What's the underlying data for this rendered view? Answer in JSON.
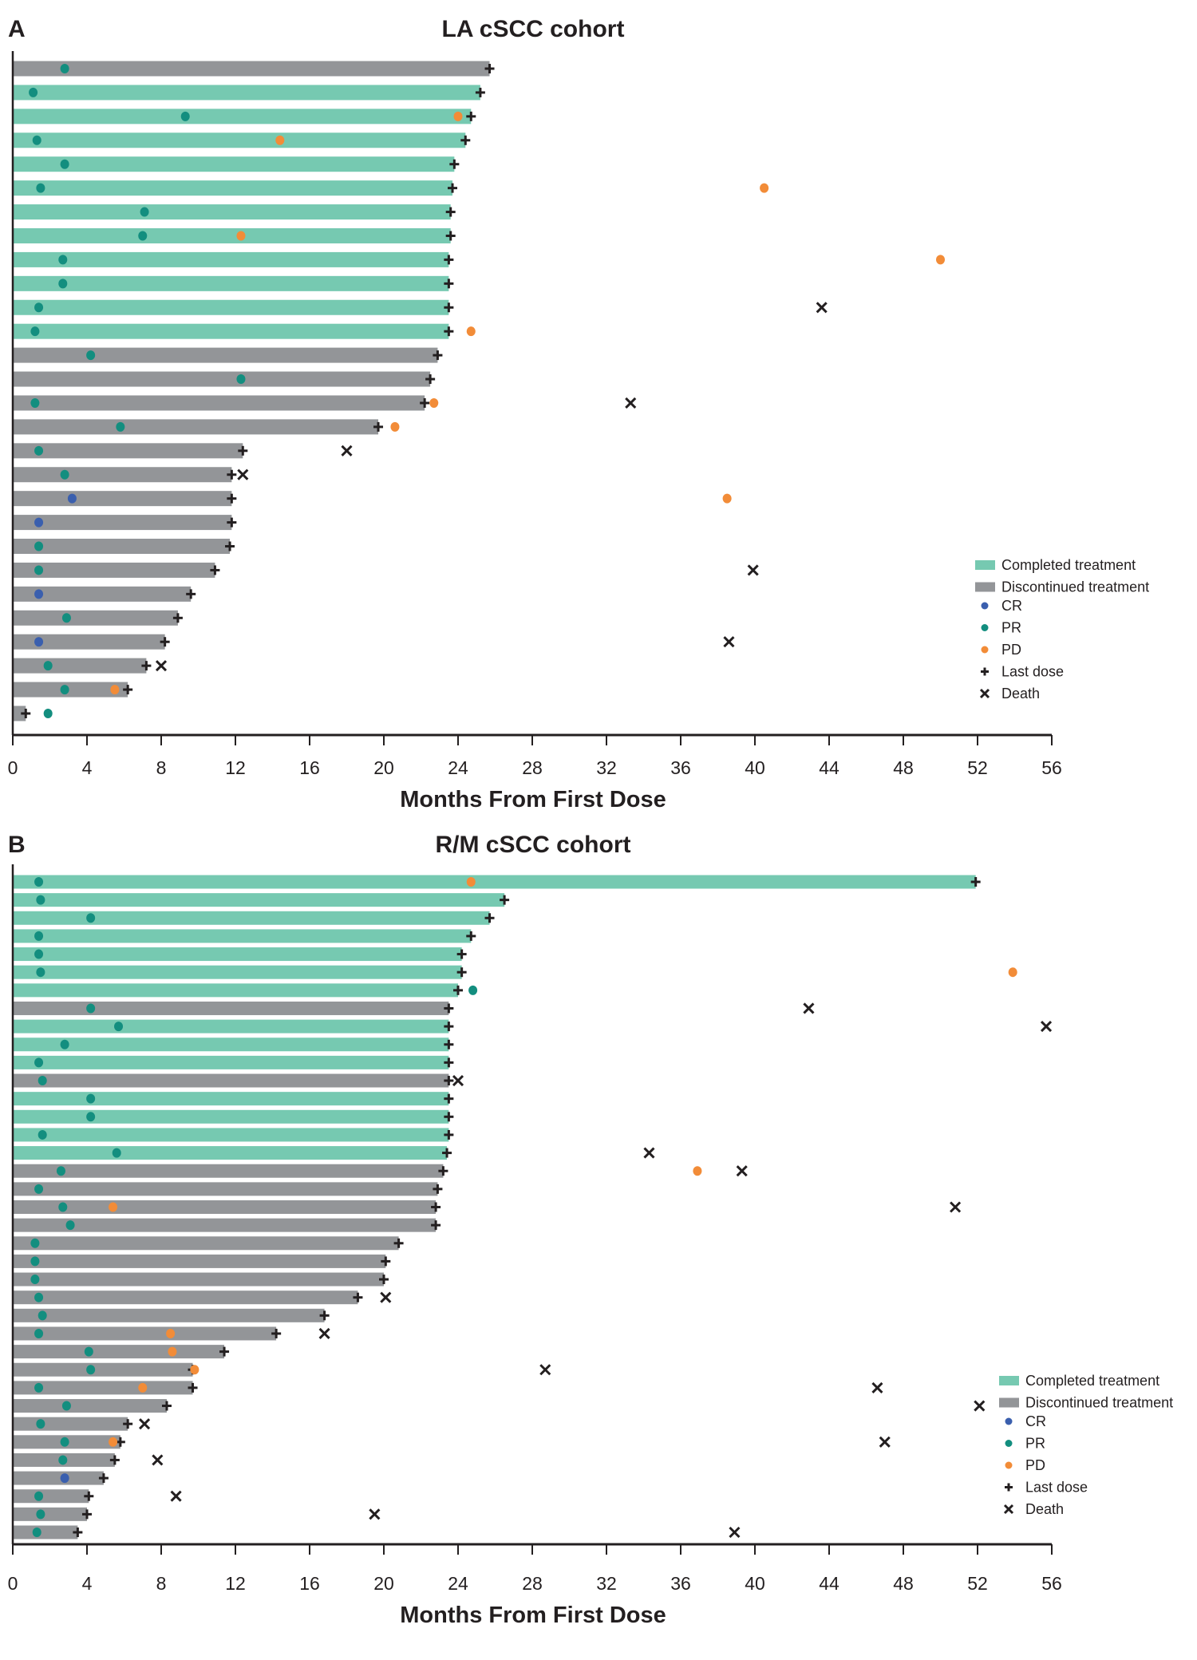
{
  "colors": {
    "completed": "#76c9b1",
    "discontinued": "#939598",
    "CR": "#3a5fae",
    "PR": "#138e7f",
    "PD": "#f28c38",
    "marker": "#231f20"
  },
  "chart_data": [
    {
      "type": "bar",
      "subtype": "swimmer-plot",
      "panel": "A",
      "title": "LA  cSCC cohort",
      "xlabel": "Months From First Dose",
      "ylabel": "",
      "xlim": [
        0,
        56
      ],
      "xticks": [
        "0",
        "4",
        "8",
        "12",
        "16",
        "20",
        "24",
        "28",
        "32",
        "36",
        "40",
        "44",
        "48",
        "52",
        "56"
      ],
      "grid": false,
      "legend_position": "bottom-right",
      "legend": [
        {
          "key": "completed",
          "label": "Completed treatment",
          "shape": "bar"
        },
        {
          "key": "discontinued",
          "label": "Discontinued treatment",
          "shape": "bar"
        },
        {
          "key": "CR",
          "label": "CR",
          "shape": "dot"
        },
        {
          "key": "PR",
          "label": "PR",
          "shape": "dot"
        },
        {
          "key": "PD",
          "label": "PD",
          "shape": "dot"
        },
        {
          "key": "last_dose",
          "label": "Last dose",
          "shape": "plus"
        },
        {
          "key": "death",
          "label": "Death",
          "shape": "x"
        }
      ],
      "patients": [
        {
          "status": "discontinued",
          "duration": 25.7,
          "CR": [],
          "PR": [
            2.8
          ],
          "PD": [],
          "death": null
        },
        {
          "status": "completed",
          "duration": 25.2,
          "CR": [],
          "PR": [
            1.1
          ],
          "PD": [],
          "death": null
        },
        {
          "status": "completed",
          "duration": 24.7,
          "CR": [],
          "PR": [
            9.3
          ],
          "PD": [
            24.0
          ],
          "death": null
        },
        {
          "status": "completed",
          "duration": 24.4,
          "CR": [],
          "PR": [
            1.3
          ],
          "PD": [
            14.4
          ],
          "death": null
        },
        {
          "status": "completed",
          "duration": 23.8,
          "CR": [],
          "PR": [
            2.8
          ],
          "PD": [],
          "death": null
        },
        {
          "status": "completed",
          "duration": 23.7,
          "CR": [],
          "PR": [
            1.5
          ],
          "PD": [
            40.5
          ],
          "death": null
        },
        {
          "status": "completed",
          "duration": 23.6,
          "CR": [],
          "PR": [
            7.1
          ],
          "PD": [],
          "death": null
        },
        {
          "status": "completed",
          "duration": 23.6,
          "CR": [],
          "PR": [
            7.0
          ],
          "PD": [
            12.3
          ],
          "death": null
        },
        {
          "status": "completed",
          "duration": 23.5,
          "CR": [],
          "PR": [
            2.7
          ],
          "PD": [
            50.0
          ],
          "death": null
        },
        {
          "status": "completed",
          "duration": 23.5,
          "CR": [],
          "PR": [
            2.7
          ],
          "PD": [],
          "death": null
        },
        {
          "status": "completed",
          "duration": 23.5,
          "CR": [],
          "PR": [
            1.4
          ],
          "PD": [],
          "death": 43.6
        },
        {
          "status": "completed",
          "duration": 23.5,
          "CR": [],
          "PR": [
            1.2
          ],
          "PD": [
            24.7
          ],
          "death": null
        },
        {
          "status": "discontinued",
          "duration": 22.9,
          "CR": [],
          "PR": [
            4.2
          ],
          "PD": [],
          "death": null
        },
        {
          "status": "discontinued",
          "duration": 22.5,
          "CR": [],
          "PR": [
            12.3
          ],
          "PD": [],
          "death": null
        },
        {
          "status": "discontinued",
          "duration": 22.2,
          "CR": [],
          "PR": [
            1.2
          ],
          "PD": [
            22.7
          ],
          "death": 33.3
        },
        {
          "status": "discontinued",
          "duration": 19.7,
          "CR": [],
          "PR": [
            5.8
          ],
          "PD": [
            20.6
          ],
          "death": null
        },
        {
          "status": "discontinued",
          "duration": 12.4,
          "CR": [],
          "PR": [
            1.4
          ],
          "PD": [],
          "death": 18.0
        },
        {
          "status": "discontinued",
          "duration": 11.8,
          "CR": [],
          "PR": [
            2.8
          ],
          "PD": [],
          "death": 12.4
        },
        {
          "status": "discontinued",
          "duration": 11.8,
          "CR": [
            3.2
          ],
          "PR": [],
          "PD": [
            38.5
          ],
          "death": null
        },
        {
          "status": "discontinued",
          "duration": 11.8,
          "CR": [
            1.4
          ],
          "PR": [],
          "PD": [],
          "death": null
        },
        {
          "status": "discontinued",
          "duration": 11.7,
          "CR": [],
          "PR": [
            1.4
          ],
          "PD": [],
          "death": null
        },
        {
          "status": "discontinued",
          "duration": 10.9,
          "CR": [],
          "PR": [
            1.4
          ],
          "PD": [],
          "death": 39.9
        },
        {
          "status": "discontinued",
          "duration": 9.6,
          "CR": [
            1.4
          ],
          "PR": [],
          "PD": [],
          "death": null
        },
        {
          "status": "discontinued",
          "duration": 8.9,
          "CR": [],
          "PR": [
            2.9
          ],
          "PD": [],
          "death": null
        },
        {
          "status": "discontinued",
          "duration": 8.2,
          "CR": [
            1.4
          ],
          "PR": [],
          "PD": [],
          "death": 38.6
        },
        {
          "status": "discontinued",
          "duration": 7.2,
          "CR": [],
          "PR": [
            1.9
          ],
          "PD": [],
          "death": 8.0
        },
        {
          "status": "discontinued",
          "duration": 6.2,
          "CR": [],
          "PR": [
            2.8
          ],
          "PD": [
            5.5
          ],
          "death": null
        },
        {
          "status": "discontinued",
          "duration": 0.7,
          "CR": [],
          "PR": [
            1.9
          ],
          "PD": [],
          "death": null
        }
      ]
    },
    {
      "type": "bar",
      "subtype": "swimmer-plot",
      "panel": "B",
      "title": "R/M  cSCC cohort",
      "xlabel": "Months From First Dose",
      "ylabel": "",
      "xlim": [
        0,
        56
      ],
      "xticks": [
        "0",
        "4",
        "8",
        "12",
        "16",
        "20",
        "24",
        "28",
        "32",
        "36",
        "40",
        "44",
        "48",
        "52",
        "56"
      ],
      "grid": false,
      "legend_position": "bottom-right",
      "legend": [
        {
          "key": "completed",
          "label": "Completed treatment",
          "shape": "bar"
        },
        {
          "key": "discontinued",
          "label": "Discontinued treatment",
          "shape": "bar"
        },
        {
          "key": "CR",
          "label": "CR",
          "shape": "dot"
        },
        {
          "key": "PR",
          "label": "PR",
          "shape": "dot"
        },
        {
          "key": "PD",
          "label": "PD",
          "shape": "dot"
        },
        {
          "key": "last_dose",
          "label": "Last dose",
          "shape": "plus"
        },
        {
          "key": "death",
          "label": "Death",
          "shape": "x"
        }
      ],
      "patients": [
        {
          "status": "completed",
          "duration": 51.9,
          "CR": [],
          "PR": [
            1.4
          ],
          "PD": [
            24.7
          ],
          "death": null
        },
        {
          "status": "completed",
          "duration": 26.5,
          "CR": [],
          "PR": [
            1.5
          ],
          "PD": [],
          "death": null
        },
        {
          "status": "completed",
          "duration": 25.7,
          "CR": [],
          "PR": [
            4.2
          ],
          "PD": [],
          "death": null
        },
        {
          "status": "completed",
          "duration": 24.7,
          "CR": [],
          "PR": [
            1.4
          ],
          "PD": [],
          "death": null
        },
        {
          "status": "completed",
          "duration": 24.2,
          "CR": [],
          "PR": [
            1.4
          ],
          "PD": [],
          "death": null
        },
        {
          "status": "completed",
          "duration": 24.2,
          "CR": [],
          "PR": [
            1.5
          ],
          "PD": [
            53.9
          ],
          "death": null
        },
        {
          "status": "completed",
          "duration": 24.0,
          "CR": [],
          "PR": [
            24.8
          ],
          "PD": [],
          "death": null
        },
        {
          "status": "discontinued",
          "duration": 23.5,
          "CR": [],
          "PR": [
            4.2
          ],
          "PD": [],
          "death": 42.9
        },
        {
          "status": "completed",
          "duration": 23.5,
          "CR": [],
          "PR": [
            5.7
          ],
          "PD": [],
          "death": 55.7
        },
        {
          "status": "completed",
          "duration": 23.5,
          "CR": [],
          "PR": [
            2.8
          ],
          "PD": [],
          "death": null
        },
        {
          "status": "completed",
          "duration": 23.5,
          "CR": [],
          "PR": [
            1.4
          ],
          "PD": [],
          "death": null
        },
        {
          "status": "discontinued",
          "duration": 23.5,
          "CR": [],
          "PR": [
            1.6
          ],
          "PD": [],
          "death": 24.0
        },
        {
          "status": "completed",
          "duration": 23.5,
          "CR": [],
          "PR": [
            4.2
          ],
          "PD": [],
          "death": null
        },
        {
          "status": "completed",
          "duration": 23.5,
          "CR": [],
          "PR": [
            4.2
          ],
          "PD": [],
          "death": null
        },
        {
          "status": "completed",
          "duration": 23.5,
          "CR": [],
          "PR": [
            1.6
          ],
          "PD": [],
          "death": null
        },
        {
          "status": "completed",
          "duration": 23.4,
          "CR": [],
          "PR": [
            5.6
          ],
          "PD": [],
          "death": 34.3
        },
        {
          "status": "discontinued",
          "duration": 23.2,
          "CR": [],
          "PR": [
            2.6
          ],
          "PD": [
            36.9
          ],
          "death": 39.3
        },
        {
          "status": "discontinued",
          "duration": 22.9,
          "CR": [],
          "PR": [
            1.4
          ],
          "PD": [],
          "death": null
        },
        {
          "status": "discontinued",
          "duration": 22.8,
          "CR": [],
          "PR": [
            2.7
          ],
          "PD": [
            5.4
          ],
          "death": 50.8
        },
        {
          "status": "discontinued",
          "duration": 22.8,
          "CR": [],
          "PR": [
            3.1
          ],
          "PD": [],
          "death": null
        },
        {
          "status": "discontinued",
          "duration": 20.8,
          "CR": [],
          "PR": [
            1.2
          ],
          "PD": [],
          "death": null
        },
        {
          "status": "discontinued",
          "duration": 20.1,
          "CR": [],
          "PR": [
            1.2
          ],
          "PD": [],
          "death": null
        },
        {
          "status": "discontinued",
          "duration": 20.0,
          "CR": [],
          "PR": [
            1.2
          ],
          "PD": [],
          "death": null
        },
        {
          "status": "discontinued",
          "duration": 18.6,
          "CR": [],
          "PR": [
            1.4
          ],
          "PD": [],
          "death": 20.1
        },
        {
          "status": "discontinued",
          "duration": 16.8,
          "CR": [],
          "PR": [
            1.6
          ],
          "PD": [],
          "death": null
        },
        {
          "status": "discontinued",
          "duration": 14.2,
          "CR": [],
          "PR": [
            1.4
          ],
          "PD": [
            8.5
          ],
          "death": 16.8
        },
        {
          "status": "discontinued",
          "duration": 11.4,
          "CR": [],
          "PR": [
            4.1
          ],
          "PD": [
            8.6
          ],
          "death": null
        },
        {
          "status": "discontinued",
          "duration": 9.7,
          "CR": [],
          "PR": [
            4.2
          ],
          "PD": [
            9.8
          ],
          "death": 28.7
        },
        {
          "status": "discontinued",
          "duration": 9.7,
          "CR": [],
          "PR": [
            1.4
          ],
          "PD": [
            7.0
          ],
          "death": 46.6
        },
        {
          "status": "discontinued",
          "duration": 8.3,
          "CR": [],
          "PR": [
            2.9
          ],
          "PD": [],
          "death": 52.1
        },
        {
          "status": "discontinued",
          "duration": 6.2,
          "CR": [],
          "PR": [
            1.5
          ],
          "PD": [],
          "death": 7.1
        },
        {
          "status": "discontinued",
          "duration": 5.8,
          "CR": [],
          "PR": [
            2.8
          ],
          "PD": [
            5.4
          ],
          "death": 47.0
        },
        {
          "status": "discontinued",
          "duration": 5.5,
          "CR": [],
          "PR": [
            2.7
          ],
          "PD": [],
          "death": 7.8
        },
        {
          "status": "discontinued",
          "duration": 4.9,
          "CR": [
            2.8
          ],
          "PR": [],
          "PD": [],
          "death": null
        },
        {
          "status": "discontinued",
          "duration": 4.1,
          "CR": [],
          "PR": [
            1.4
          ],
          "PD": [],
          "death": 8.8
        },
        {
          "status": "discontinued",
          "duration": 4.0,
          "CR": [],
          "PR": [
            1.5
          ],
          "PD": [],
          "death": 19.5
        },
        {
          "status": "discontinued",
          "duration": 3.5,
          "CR": [],
          "PR": [
            1.3
          ],
          "PD": [],
          "death": 38.9
        }
      ]
    }
  ]
}
